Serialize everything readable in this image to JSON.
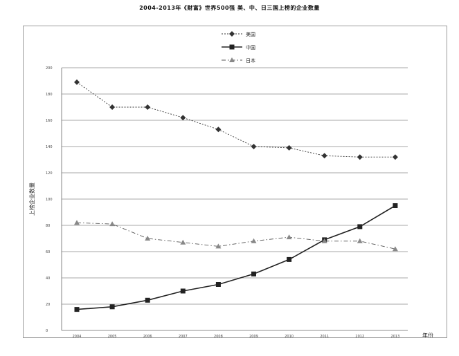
{
  "chart_data": {
    "type": "line",
    "title": "2004-2013年《财富》世界500强 美、中、日三国上榜的企业数量",
    "xlabel": "年份",
    "ylabel": "上榜企业数量",
    "x": [
      "2004",
      "2005",
      "2006",
      "2007",
      "2008",
      "2009",
      "2010",
      "2011",
      "2012",
      "2013"
    ],
    "ylim": [
      0,
      200
    ],
    "yticks": [
      0,
      20,
      40,
      60,
      80,
      100,
      120,
      140,
      160,
      180,
      200
    ],
    "grid": true,
    "legend_position": "top-center",
    "series": [
      {
        "name": "美国",
        "values": [
          189,
          170,
          170,
          162,
          153,
          140,
          139,
          133,
          132,
          132
        ],
        "line_style": "dashed",
        "marker": "diamond",
        "color": "#333333"
      },
      {
        "name": "中国",
        "values": [
          16,
          18,
          23,
          30,
          35,
          43,
          54,
          69,
          79,
          95
        ],
        "line_style": "solid",
        "marker": "square",
        "color": "#222222"
      },
      {
        "name": "日本",
        "values": [
          82,
          81,
          70,
          67,
          64,
          68,
          71,
          68,
          68,
          62
        ],
        "line_style": "dashdot",
        "marker": "triangle",
        "color": "#555555"
      }
    ]
  }
}
